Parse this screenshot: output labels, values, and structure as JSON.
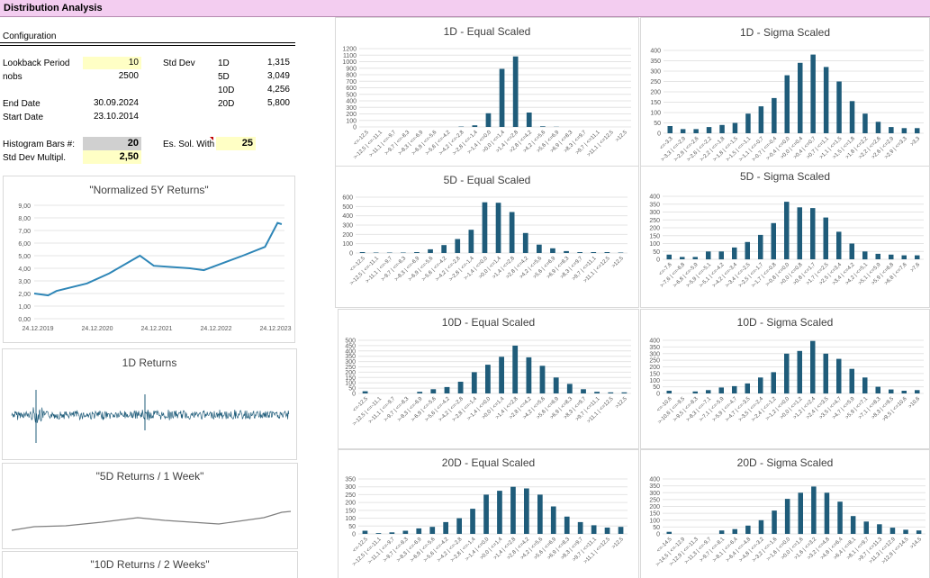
{
  "sheet_title": "Distribution Analysis",
  "config": {
    "heading": "Configuration",
    "lookback_label": "Lookback Period",
    "lookback_value": "10",
    "nobs_label": "nobs",
    "nobs_value": "2500",
    "end_label": "End Date",
    "end_value": "30.09.2024",
    "start_label": "Start Date",
    "start_value": "23.10.2014",
    "stddev_label": "Std Dev",
    "stddev_rows": [
      {
        "k": "1D",
        "v": "1,315"
      },
      {
        "k": "5D",
        "v": "3,049"
      },
      {
        "k": "10D",
        "v": "4,256"
      },
      {
        "k": "20D",
        "v": "5,800"
      }
    ],
    "hist_label": "Histogram Bars #:",
    "hist_value": "20",
    "stdmult_label": "Std Dev Multipl.",
    "stdmult_value": "2,50",
    "es_label": "Es. Sol. With",
    "es_value": "25"
  },
  "colors": {
    "bar": "#1f5c7a",
    "line": "#2e86b7",
    "gray_line": "#7f7f7f",
    "title_bg": "#f3cdf0"
  },
  "line_panel": {
    "title": "\"Normalized 5Y Returns\"",
    "yticks": [
      "9,00",
      "8,00",
      "7,00",
      "6,00",
      "5,00",
      "4,00",
      "3,00",
      "2,00",
      "1,00",
      "0,00"
    ],
    "xticks": [
      "24.12.2019",
      "24.12.2020",
      "24.12.2021",
      "24.12.2022",
      "24.12.2023"
    ]
  },
  "returns_panels": [
    {
      "title": "1D Returns"
    },
    {
      "title": "\"5D Returns / 1 Week\""
    },
    {
      "title": "\"10D Returns / 2 Weeks\""
    }
  ],
  "chart_data": [
    {
      "type": "line",
      "title": "\"Normalized 5Y Returns\"",
      "ylim": [
        0,
        9
      ],
      "x": [
        0,
        0.5,
        0.8,
        1.9,
        2.7,
        3.8,
        4.3,
        5.6,
        6.1,
        7.5,
        8.3,
        8.75,
        8.9
      ],
      "values": [
        2.0,
        1.85,
        2.2,
        2.8,
        3.6,
        5.0,
        4.2,
        4.0,
        3.85,
        5.0,
        5.7,
        7.6,
        7.5
      ]
    },
    {
      "type": "bar",
      "title": "1D - Equal Scaled",
      "ylim": [
        0,
        1200
      ],
      "yticks": [
        "1200",
        "1100",
        "1000",
        "900",
        "800",
        "700",
        "600",
        "500",
        "400",
        "300",
        "200",
        "100",
        "0"
      ],
      "categories": [
        "<=-12,5",
        ">-12,5 | <=-11,1",
        ">-11,1 | <=-9,7",
        ">-9,7 | <=-8,3",
        ">-8,3 | <=-6,9",
        ">-6,9 | <=-5,6",
        ">-5,6 | <=-4,2",
        ">-4,2 | <=-2,8",
        ">-2,8 | <=-1,4",
        ">-1,4 | <=0,0",
        ">0,0 | <=1,4",
        ">1,4 | <=2,8",
        ">2,8 | <=4,2",
        ">4,2 | <=5,6",
        ">5,6 | <=6,9",
        ">6,9 | <=8,3",
        ">8,3 | <=9,7",
        ">9,7 | <=11,1",
        ">11,1 | <=12,5",
        ">12,5"
      ],
      "values": [
        0,
        0,
        0,
        0,
        0,
        0,
        0,
        5,
        25,
        210,
        890,
        1080,
        220,
        10,
        3,
        0,
        0,
        0,
        0,
        0
      ]
    },
    {
      "type": "bar",
      "title": "1D - Sigma Scaled",
      "ylim": [
        0,
        400
      ],
      "yticks": [
        "400",
        "350",
        "300",
        "250",
        "200",
        "150",
        "100",
        "50",
        "0"
      ],
      "categories": [
        "<=-3,3",
        ">-3,3 | <=-2,9",
        ">-2,9 | <=-2,6",
        ">-2,6 | <=-2,2",
        ">-2,2 | <=-1,8",
        ">-1,8 | <=-1,5",
        ">-1,5 | <=-1,1",
        ">-1,1 | <=-0,7",
        ">-0,7 | <=-0,4",
        ">-0,4 | <=0,0",
        ">0,0 | <=0,4",
        ">0,4 | <=0,7",
        ">0,7 | <=1,1",
        ">1,1 | <=1,5",
        ">1,5 | <=1,8",
        ">1,8 | <=2,2",
        ">2,2 | <=2,6",
        ">2,6 | <=2,9",
        ">2,9 | <=3,3",
        ">3,3"
      ],
      "values": [
        35,
        20,
        20,
        30,
        40,
        50,
        95,
        130,
        170,
        280,
        340,
        380,
        320,
        250,
        155,
        95,
        55,
        30,
        25,
        25
      ]
    },
    {
      "type": "bar",
      "title": "5D - Equal Scaled",
      "ylim": [
        0,
        600
      ],
      "yticks": [
        "600",
        "500",
        "400",
        "300",
        "200",
        "100",
        "0"
      ],
      "categories": [
        "<=-12,5",
        ">-12,5 | <=-11,1",
        ">-11,1 | <=-9,7",
        ">-9,7 | <=-8,3",
        ">-8,3 | <=-6,9",
        ">-6,9 | <=-5,6",
        ">-5,6 | <=-4,2",
        ">-4,2 | <=-2,8",
        ">-2,8 | <=-1,4",
        ">-1,4 | <=0,0",
        ">0,0 | <=1,4",
        ">1,4 | <=2,8",
        ">2,8 | <=4,2",
        ">4,2 | <=5,6",
        ">5,6 | <=6,9",
        ">6,9 | <=8,3",
        ">8,3 | <=9,7",
        ">9,7 | <=11,1",
        ">11,1 | <=12,5",
        ">12,5"
      ],
      "values": [
        10,
        5,
        5,
        5,
        10,
        40,
        85,
        150,
        250,
        545,
        540,
        440,
        215,
        90,
        50,
        20,
        10,
        10,
        10,
        5
      ]
    },
    {
      "type": "bar",
      "title": "5D - Sigma Scaled",
      "ylim": [
        0,
        400
      ],
      "yticks": [
        "400",
        "350",
        "300",
        "250",
        "200",
        "150",
        "100",
        "50",
        "0"
      ],
      "categories": [
        "<=-7,6",
        ">-7,6 | <=-6,8",
        ">-6,8 | <=-5,9",
        ">-5,9 | <=-5,1",
        ">-5,1 | <=-4,2",
        ">-4,2 | <=-3,4",
        ">-3,4 | <=-2,5",
        ">-2,5 | <=-1,7",
        ">-1,7 | <=-0,8",
        ">-0,8 | <=0,0",
        ">0,0 | <=0,8",
        ">0,8 | <=1,7",
        ">1,7 | <=2,5",
        ">2,5 | <=3,4",
        ">3,4 | <=4,2",
        ">4,2 | <=5,1",
        ">5,1 | <=5,9",
        ">5,9 | <=6,8",
        ">6,8 | <=7,6",
        ">7,6"
      ],
      "values": [
        30,
        15,
        15,
        50,
        50,
        75,
        110,
        155,
        230,
        365,
        330,
        325,
        265,
        175,
        100,
        50,
        35,
        30,
        25,
        25
      ]
    },
    {
      "type": "bar",
      "title": "10D - Equal Scaled",
      "ylim": [
        0,
        500
      ],
      "yticks": [
        "500",
        "450",
        "400",
        "350",
        "300",
        "250",
        "200",
        "150",
        "100",
        "50",
        "0"
      ],
      "categories": [
        "<=-12,5",
        ">-12,5 | <=-11,1",
        ">-11,1 | <=-9,7",
        ">-9,7 | <=-8,3",
        ">-8,3 | <=-6,9",
        ">-6,9 | <=-5,6",
        ">-5,6 | <=-4,2",
        ">-4,2 | <=-2,8",
        ">-2,8 | <=-1,4",
        ">-1,4 | <=0,0",
        ">0,0 | <=1,4",
        ">1,4 | <=2,8",
        ">2,8 | <=4,2",
        ">4,2 | <=5,6",
        ">5,6 | <=6,9",
        ">6,9 | <=8,3",
        ">8,3 | <=9,7",
        ">9,7 | <=11,1",
        ">11,1 | <=12,5",
        ">12,5"
      ],
      "values": [
        20,
        0,
        0,
        0,
        15,
        40,
        60,
        110,
        200,
        270,
        345,
        450,
        340,
        260,
        150,
        90,
        40,
        15,
        10,
        10
      ]
    },
    {
      "type": "bar",
      "title": "10D - Sigma Scaled",
      "ylim": [
        0,
        400
      ],
      "yticks": [
        "400",
        "350",
        "300",
        "250",
        "200",
        "150",
        "100",
        "50",
        "0"
      ],
      "categories": [
        "<=-10,6",
        ">-10,6 | <=-9,5",
        ">-9,5 | <=-8,3",
        ">-8,3 | <=-7,1",
        ">-7,1 | <=-5,9",
        ">-5,9 | <=-4,7",
        ">-4,7 | <=-3,5",
        ">-3,5 | <=-2,4",
        ">-2,4 | <=-1,2",
        ">-1,2 | <=0,0",
        ">0,0 | <=1,2",
        ">1,2 | <=2,4",
        ">2,4 | <=3,5",
        ">3,5 | <=4,7",
        ">4,7 | <=5,9",
        ">5,9 | <=7,1",
        ">7,1 | <=8,3",
        ">8,3 | <=9,5",
        ">9,5 | <=10,6",
        ">10,6"
      ],
      "values": [
        20,
        0,
        15,
        25,
        45,
        55,
        75,
        120,
        160,
        300,
        320,
        395,
        300,
        260,
        185,
        120,
        50,
        30,
        20,
        25
      ]
    },
    {
      "type": "bar",
      "title": "20D - Equal Scaled",
      "ylim": [
        0,
        350
      ],
      "yticks": [
        "350",
        "300",
        "250",
        "200",
        "150",
        "100",
        "50",
        "0"
      ],
      "categories": [
        "<=-12,5",
        ">-12,5 | <=-11,1",
        ">-11,1 | <=-9,7",
        ">-9,7 | <=-8,3",
        ">-8,3 | <=-6,9",
        ">-6,9 | <=-5,6",
        ">-5,6 | <=-4,2",
        ">-4,2 | <=-2,8",
        ">-2,8 | <=-1,4",
        ">-1,4 | <=0,0",
        ">0,0 | <=1,4",
        ">1,4 | <=2,8",
        ">2,8 | <=4,2",
        ">4,2 | <=5,6",
        ">5,6 | <=6,9",
        ">6,9 | <=8,3",
        ">8,3 | <=9,7",
        ">9,7 | <=11,1",
        ">11,1 | <=12,5",
        ">12,5"
      ],
      "values": [
        20,
        5,
        10,
        20,
        35,
        45,
        75,
        100,
        160,
        250,
        275,
        300,
        290,
        250,
        175,
        110,
        75,
        55,
        40,
        45
      ]
    },
    {
      "type": "bar",
      "title": "20D - Sigma Scaled",
      "ylim": [
        0,
        400
      ],
      "yticks": [
        "400",
        "350",
        "300",
        "250",
        "200",
        "150",
        "100",
        "50",
        "0"
      ],
      "categories": [
        "<=-14,5",
        ">-14,5 | <=-12,9",
        ">-12,9 | <=-11,3",
        ">-11,3 | <=-9,7",
        ">-9,7 | <=-8,1",
        ">-8,1 | <=-6,4",
        ">-6,4 | <=-4,8",
        ">-4,8 | <=-3,2",
        ">-3,2 | <=-1,6",
        ">-1,6 | <=0,0",
        ">0,0 | <=1,6",
        ">1,6 | <=3,2",
        ">3,2 | <=4,8",
        ">4,8 | <=6,4",
        ">6,4 | <=8,1",
        ">8,1 | <=9,7",
        ">9,7 | <=11,3",
        ">11,3 | <=12,9",
        ">12,9 | <=14,5",
        ">14,5"
      ],
      "values": [
        15,
        0,
        0,
        0,
        25,
        35,
        60,
        100,
        170,
        255,
        300,
        345,
        300,
        235,
        130,
        90,
        70,
        45,
        30,
        25
      ]
    }
  ]
}
